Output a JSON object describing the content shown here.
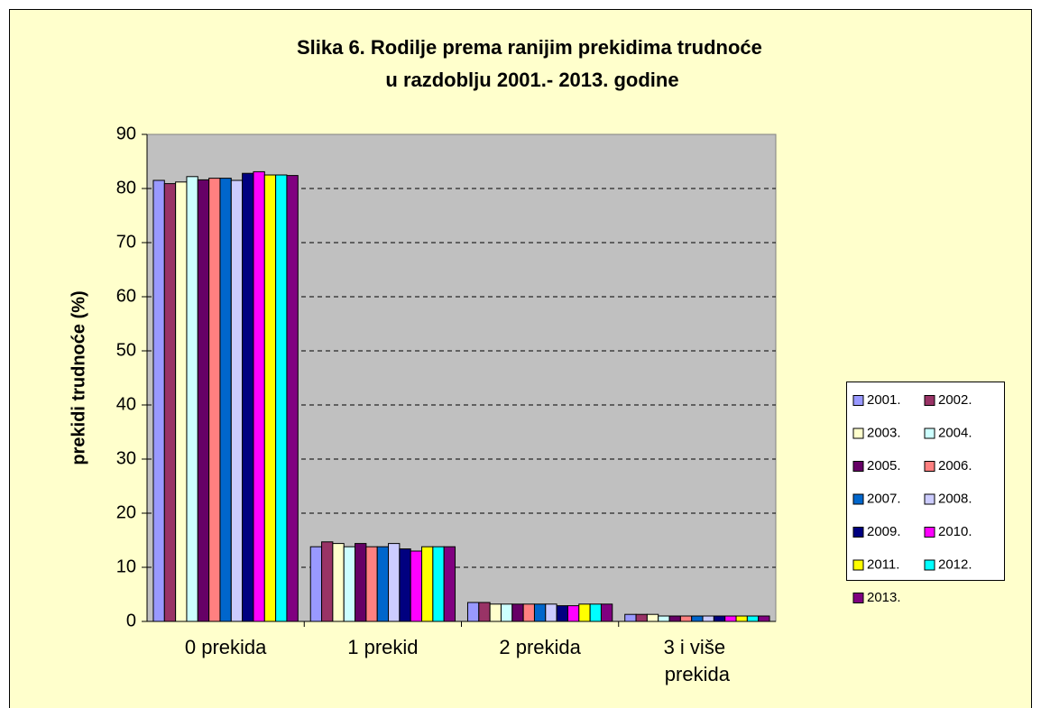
{
  "chart_data": {
    "type": "bar",
    "title": "Slika 6. Rodilje prema ranijim prekidima trudnoće\nu razdoblju 2001.- 2013. godine",
    "y_label": "prekidi trudnoće (%)",
    "categories": [
      "0 prekida",
      "1 prekid",
      "2 prekida",
      "3 i više prekida"
    ],
    "ylim": [
      0,
      90
    ],
    "yticks": [
      0,
      10,
      20,
      30,
      40,
      50,
      60,
      70,
      80,
      90
    ],
    "grid": true,
    "legend": "right",
    "series": [
      {
        "name": "2001.",
        "color": "#9999FF",
        "values": [
          81.5,
          13.8,
          3.5,
          1.3
        ]
      },
      {
        "name": "2002.",
        "color": "#993366",
        "values": [
          80.9,
          14.7,
          3.5,
          1.3
        ]
      },
      {
        "name": "2003.",
        "color": "#FFFFCC",
        "values": [
          81.2,
          14.4,
          3.2,
          1.3
        ]
      },
      {
        "name": "2004.",
        "color": "#CCFFFF",
        "values": [
          82.2,
          13.8,
          3.2,
          1.0
        ]
      },
      {
        "name": "2005.",
        "color": "#660066",
        "values": [
          81.6,
          14.4,
          3.2,
          1.0
        ]
      },
      {
        "name": "2006.",
        "color": "#FF8080",
        "values": [
          81.9,
          13.8,
          3.2,
          1.0
        ]
      },
      {
        "name": "2007.",
        "color": "#0066CC",
        "values": [
          81.9,
          13.8,
          3.2,
          1.0
        ]
      },
      {
        "name": "2008.",
        "color": "#CCCCFF",
        "values": [
          81.5,
          14.4,
          3.2,
          1.0
        ]
      },
      {
        "name": "2009.",
        "color": "#000080",
        "values": [
          82.8,
          13.4,
          2.9,
          1.0
        ]
      },
      {
        "name": "2010.",
        "color": "#FF00FF",
        "values": [
          83.1,
          13.0,
          2.9,
          1.0
        ]
      },
      {
        "name": "2011.",
        "color": "#FFFF00",
        "values": [
          82.5,
          13.8,
          3.2,
          1.0
        ]
      },
      {
        "name": "2012.",
        "color": "#00FFFF",
        "values": [
          82.5,
          13.8,
          3.2,
          1.0
        ]
      },
      {
        "name": "2013.",
        "color": "#800080",
        "values": [
          82.4,
          13.8,
          3.2,
          1.0
        ]
      }
    ]
  }
}
